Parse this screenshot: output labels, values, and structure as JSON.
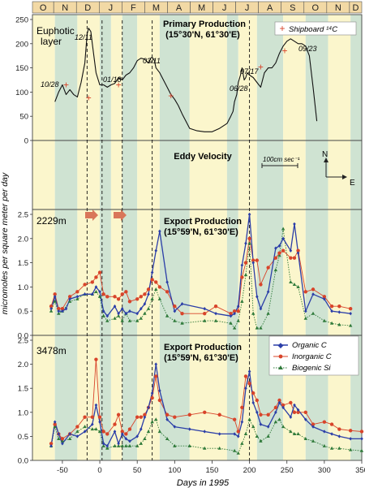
{
  "months": [
    "O",
    "N",
    "D",
    "J",
    "F",
    "M",
    "A",
    "M",
    "J",
    "J",
    "A",
    "S",
    "O",
    "N",
    "D"
  ],
  "ylabel": "micromoles per square meter per day",
  "xlabel": "Days in 1995",
  "x_ticks": [
    "-50",
    "0",
    "50",
    "100",
    "150",
    "200",
    "250",
    "300",
    "350"
  ],
  "panel1": {
    "label_line1": "Euphotic",
    "label_line2": "layer",
    "title_line1": "Primary Production",
    "title_line2": "(15°30'N, 61°30'E)",
    "legend": "Shipboard ¹⁴C",
    "y_ticks": [
      "0",
      "50",
      "100",
      "150",
      "200",
      "250"
    ],
    "date_labels": [
      "10/28",
      "12/11",
      "01/18",
      "03/11",
      "06/28",
      "07/17",
      "09/23"
    ]
  },
  "panel2": {
    "title": "Eddy Velocity",
    "scale_label": "100cm sec⁻¹",
    "north": "N",
    "east": "E"
  },
  "panel3": {
    "depth": "2229m",
    "title_line1": "Export Production",
    "title_line2": "(15°59'N, 61°30'E)",
    "y_ticks": [
      "0.0",
      "0.5",
      "1.0",
      "1.5",
      "2.0",
      "2.5"
    ]
  },
  "panel4": {
    "depth": "3478m",
    "title_line1": "Export Production",
    "title_line2": "(15°59'N, 61°30'E)",
    "y_ticks": [
      "0.0",
      "0.5",
      "1.0",
      "1.5",
      "2.0",
      "2.5"
    ],
    "legend": [
      "Organic C",
      "Inorganic C",
      "Biogenic Si"
    ]
  },
  "colors": {
    "organic": "#2b3ea8",
    "inorganic": "#d8442a",
    "silica": "#2f7a3a",
    "band_light": "#fbf6cc",
    "band_green": "#cfe3d2",
    "month_bar": "#f2d9a5",
    "arrow": "#d9765a"
  },
  "chart_data": [
    {
      "type": "line",
      "title": "Primary Production",
      "xlabel": "Days in 1995",
      "xlim": [
        -90,
        350
      ],
      "ylim": [
        0,
        250
      ],
      "series": [
        {
          "name": "",
          "x": [
            -60,
            -55,
            -50,
            -45,
            -40,
            -35,
            -30,
            -25,
            -20,
            -17,
            -15,
            -12,
            -10,
            -5,
            0,
            5,
            10,
            15,
            20,
            25,
            30,
            35,
            40,
            45,
            50,
            55,
            60,
            65,
            68,
            70,
            73,
            75,
            80,
            85,
            90,
            95,
            100,
            105,
            110,
            115,
            120,
            130,
            140,
            150,
            160,
            170,
            175,
            178,
            180,
            183,
            185,
            188,
            190,
            193,
            195,
            197,
            200,
            205,
            210,
            215,
            220,
            225,
            230,
            235,
            240,
            245,
            250,
            255,
            260,
            265,
            270,
            275,
            280,
            285,
            290
          ],
          "values": [
            80,
            100,
            115,
            95,
            105,
            95,
            90,
            120,
            160,
            220,
            232,
            225,
            200,
            140,
            115,
            115,
            110,
            115,
            118,
            130,
            125,
            135,
            140,
            150,
            165,
            170,
            168,
            160,
            170,
            172,
            165,
            150,
            140,
            125,
            110,
            95,
            85,
            72,
            55,
            40,
            25,
            20,
            18,
            18,
            25,
            35,
            50,
            60,
            80,
            95,
            120,
            135,
            150,
            125,
            130,
            140,
            135,
            130,
            120,
            110,
            140,
            150,
            150,
            160,
            180,
            195,
            205,
            210,
            205,
            200,
            200,
            195,
            175,
            110,
            40
          ]
        },
        {
          "name": "Shipboard ¹⁴C",
          "type": "scatter",
          "x": [
            -45,
            -15,
            25,
            95,
            215,
            247
          ],
          "values": [
            115,
            88,
            115,
            92,
            152,
            185
          ]
        }
      ]
    },
    {
      "type": "line",
      "title": "Export Production",
      "subtitle": "2229m",
      "xlim": [
        -90,
        350
      ],
      "ylim": [
        0,
        2.5
      ],
      "series": [
        {
          "name": "Organic C",
          "x": [
            -65,
            -60,
            -55,
            -50,
            -45,
            -40,
            -30,
            -20,
            -10,
            -5,
            0,
            5,
            10,
            20,
            25,
            30,
            35,
            40,
            50,
            55,
            60,
            65,
            70,
            75,
            80,
            90,
            100,
            110,
            140,
            155,
            175,
            180,
            185,
            190,
            195,
            200,
            205,
            210,
            215,
            225,
            235,
            240,
            245,
            255,
            260,
            265,
            275,
            285,
            300,
            310,
            320,
            335
          ],
          "values": [
            0.55,
            0.8,
            0.5,
            0.5,
            0.55,
            0.75,
            0.8,
            0.85,
            0.85,
            1.0,
            0.9,
            0.5,
            0.4,
            0.6,
            0.45,
            0.55,
            0.45,
            0.5,
            0.45,
            0.55,
            0.65,
            0.85,
            1.3,
            1.75,
            2.15,
            1.1,
            0.5,
            0.65,
            0.55,
            0.45,
            0.4,
            0.45,
            0.6,
            1.45,
            1.9,
            2.5,
            1.5,
            0.8,
            0.55,
            0.9,
            1.8,
            1.85,
            2.0,
            1.75,
            2.3,
            1.7,
            0.5,
            0.85,
            0.75,
            0.5,
            0.48,
            0.45
          ]
        },
        {
          "name": "Inorganic C",
          "x": [
            -65,
            -60,
            -55,
            -50,
            -40,
            -30,
            -20,
            -10,
            -5,
            0,
            5,
            10,
            20,
            25,
            30,
            35,
            40,
            50,
            55,
            60,
            65,
            70,
            75,
            80,
            90,
            100,
            110,
            140,
            155,
            175,
            180,
            185,
            190,
            195,
            200,
            205,
            210,
            215,
            225,
            235,
            240,
            245,
            255,
            260,
            265,
            275,
            285,
            300,
            310,
            320,
            335
          ],
          "values": [
            0.6,
            0.85,
            0.55,
            0.55,
            0.8,
            0.9,
            1.05,
            1.1,
            1.2,
            1.3,
            0.85,
            0.8,
            0.8,
            0.75,
            0.85,
            0.9,
            0.7,
            0.75,
            0.8,
            0.85,
            0.95,
            1.15,
            1.1,
            1.0,
            0.9,
            0.6,
            0.45,
            0.45,
            0.6,
            0.45,
            0.5,
            0.5,
            1.2,
            1.5,
            2.0,
            1.55,
            1.55,
            1.05,
            1.4,
            1.6,
            1.7,
            1.75,
            1.6,
            1.6,
            1.75,
            0.9,
            0.95,
            0.8,
            0.6,
            0.6,
            0.55
          ]
        },
        {
          "name": "Biogenic Si",
          "x": [
            -65,
            -60,
            -55,
            -50,
            -40,
            -30,
            -20,
            -10,
            -5,
            0,
            5,
            10,
            20,
            25,
            30,
            35,
            40,
            50,
            55,
            60,
            65,
            70,
            75,
            80,
            90,
            100,
            110,
            140,
            155,
            175,
            180,
            185,
            190,
            195,
            200,
            205,
            210,
            215,
            225,
            235,
            240,
            245,
            255,
            260,
            265,
            275,
            285,
            300,
            310,
            320,
            335
          ],
          "values": [
            0.5,
            0.7,
            0.45,
            0.5,
            0.7,
            0.75,
            0.85,
            0.85,
            0.9,
            0.8,
            0.4,
            0.3,
            0.35,
            0.4,
            0.3,
            0.45,
            0.3,
            0.3,
            0.35,
            0.45,
            0.55,
            0.75,
            0.95,
            0.75,
            0.4,
            0.3,
            0.25,
            0.3,
            0.3,
            0.25,
            0.15,
            0.3,
            0.7,
            1.25,
            1.9,
            0.45,
            0.15,
            0.15,
            0.45,
            1.35,
            1.65,
            2.2,
            1.1,
            1.05,
            1.0,
            0.35,
            0.45,
            0.3,
            0.25,
            0.22,
            0.2
          ]
        }
      ]
    },
    {
      "type": "line",
      "title": "Export Production",
      "subtitle": "3478m",
      "xlim": [
        -90,
        350
      ],
      "ylim": [
        0,
        2.5
      ],
      "series": [
        {
          "name": "Organic C",
          "x": [
            -65,
            -60,
            -55,
            -50,
            -40,
            -30,
            -20,
            -10,
            -5,
            0,
            5,
            10,
            20,
            25,
            30,
            35,
            40,
            50,
            55,
            60,
            65,
            70,
            75,
            80,
            90,
            100,
            120,
            140,
            160,
            180,
            185,
            190,
            195,
            200,
            205,
            210,
            215,
            225,
            235,
            240,
            245,
            255,
            260,
            265,
            275,
            285,
            300,
            310,
            320,
            335,
            350
          ],
          "values": [
            0.3,
            0.8,
            0.55,
            0.35,
            0.55,
            0.5,
            0.6,
            0.75,
            1.15,
            0.8,
            0.35,
            0.3,
            0.6,
            0.35,
            0.55,
            0.45,
            0.4,
            0.5,
            0.65,
            0.9,
            1.1,
            1.4,
            2.0,
            1.45,
            0.85,
            0.7,
            0.65,
            0.6,
            0.55,
            0.55,
            0.5,
            0.8,
            1.5,
            1.85,
            1.2,
            1.0,
            0.75,
            0.7,
            1.0,
            1.2,
            1.1,
            0.9,
            1.15,
            1.05,
            0.85,
            0.7,
            0.6,
            0.55,
            0.5,
            0.45,
            0.45
          ]
        },
        {
          "name": "Inorganic C",
          "x": [
            -65,
            -60,
            -55,
            -50,
            -40,
            -30,
            -20,
            -10,
            -5,
            0,
            5,
            10,
            20,
            25,
            30,
            35,
            40,
            50,
            55,
            60,
            65,
            70,
            75,
            80,
            90,
            100,
            120,
            140,
            160,
            180,
            185,
            190,
            195,
            200,
            205,
            210,
            215,
            225,
            235,
            240,
            245,
            255,
            260,
            265,
            275,
            285,
            300,
            310,
            320,
            335,
            350
          ],
          "values": [
            0.35,
            0.75,
            0.55,
            0.45,
            0.55,
            0.7,
            0.9,
            0.9,
            2.1,
            0.9,
            0.6,
            0.55,
            0.75,
            0.95,
            0.6,
            0.55,
            0.65,
            0.9,
            0.9,
            0.95,
            1.1,
            1.3,
            1.75,
            1.25,
            0.95,
            0.9,
            0.95,
            1.0,
            0.95,
            0.85,
            0.6,
            1.1,
            1.75,
            1.6,
            1.4,
            1.25,
            0.95,
            0.95,
            1.1,
            1.25,
            1.15,
            1.2,
            1.0,
            1.0,
            1.0,
            0.75,
            0.8,
            0.75,
            0.65,
            0.62,
            0.6
          ]
        },
        {
          "name": "Biogenic Si",
          "x": [
            -65,
            -60,
            -55,
            -50,
            -40,
            -30,
            -20,
            -10,
            -5,
            0,
            5,
            10,
            20,
            25,
            30,
            35,
            40,
            50,
            55,
            60,
            65,
            70,
            75,
            80,
            90,
            100,
            120,
            140,
            160,
            180,
            185,
            190,
            195,
            200,
            205,
            210,
            215,
            225,
            235,
            240,
            245,
            255,
            260,
            265,
            275,
            285,
            300,
            310,
            320,
            335,
            350
          ],
          "values": [
            0.3,
            0.7,
            0.45,
            0.4,
            0.45,
            0.6,
            0.7,
            0.65,
            0.65,
            0.6,
            0.3,
            0.25,
            0.3,
            0.3,
            0.3,
            0.3,
            0.3,
            0.3,
            0.35,
            0.45,
            0.6,
            0.8,
            0.85,
            0.6,
            0.45,
            0.3,
            0.3,
            0.25,
            0.25,
            0.2,
            0.15,
            0.35,
            0.55,
            0.85,
            0.7,
            0.5,
            0.4,
            0.5,
            0.8,
            0.85,
            0.7,
            0.6,
            0.55,
            0.55,
            0.45,
            0.4,
            0.3,
            0.25,
            0.25,
            0.22,
            0.2
          ]
        }
      ]
    }
  ]
}
